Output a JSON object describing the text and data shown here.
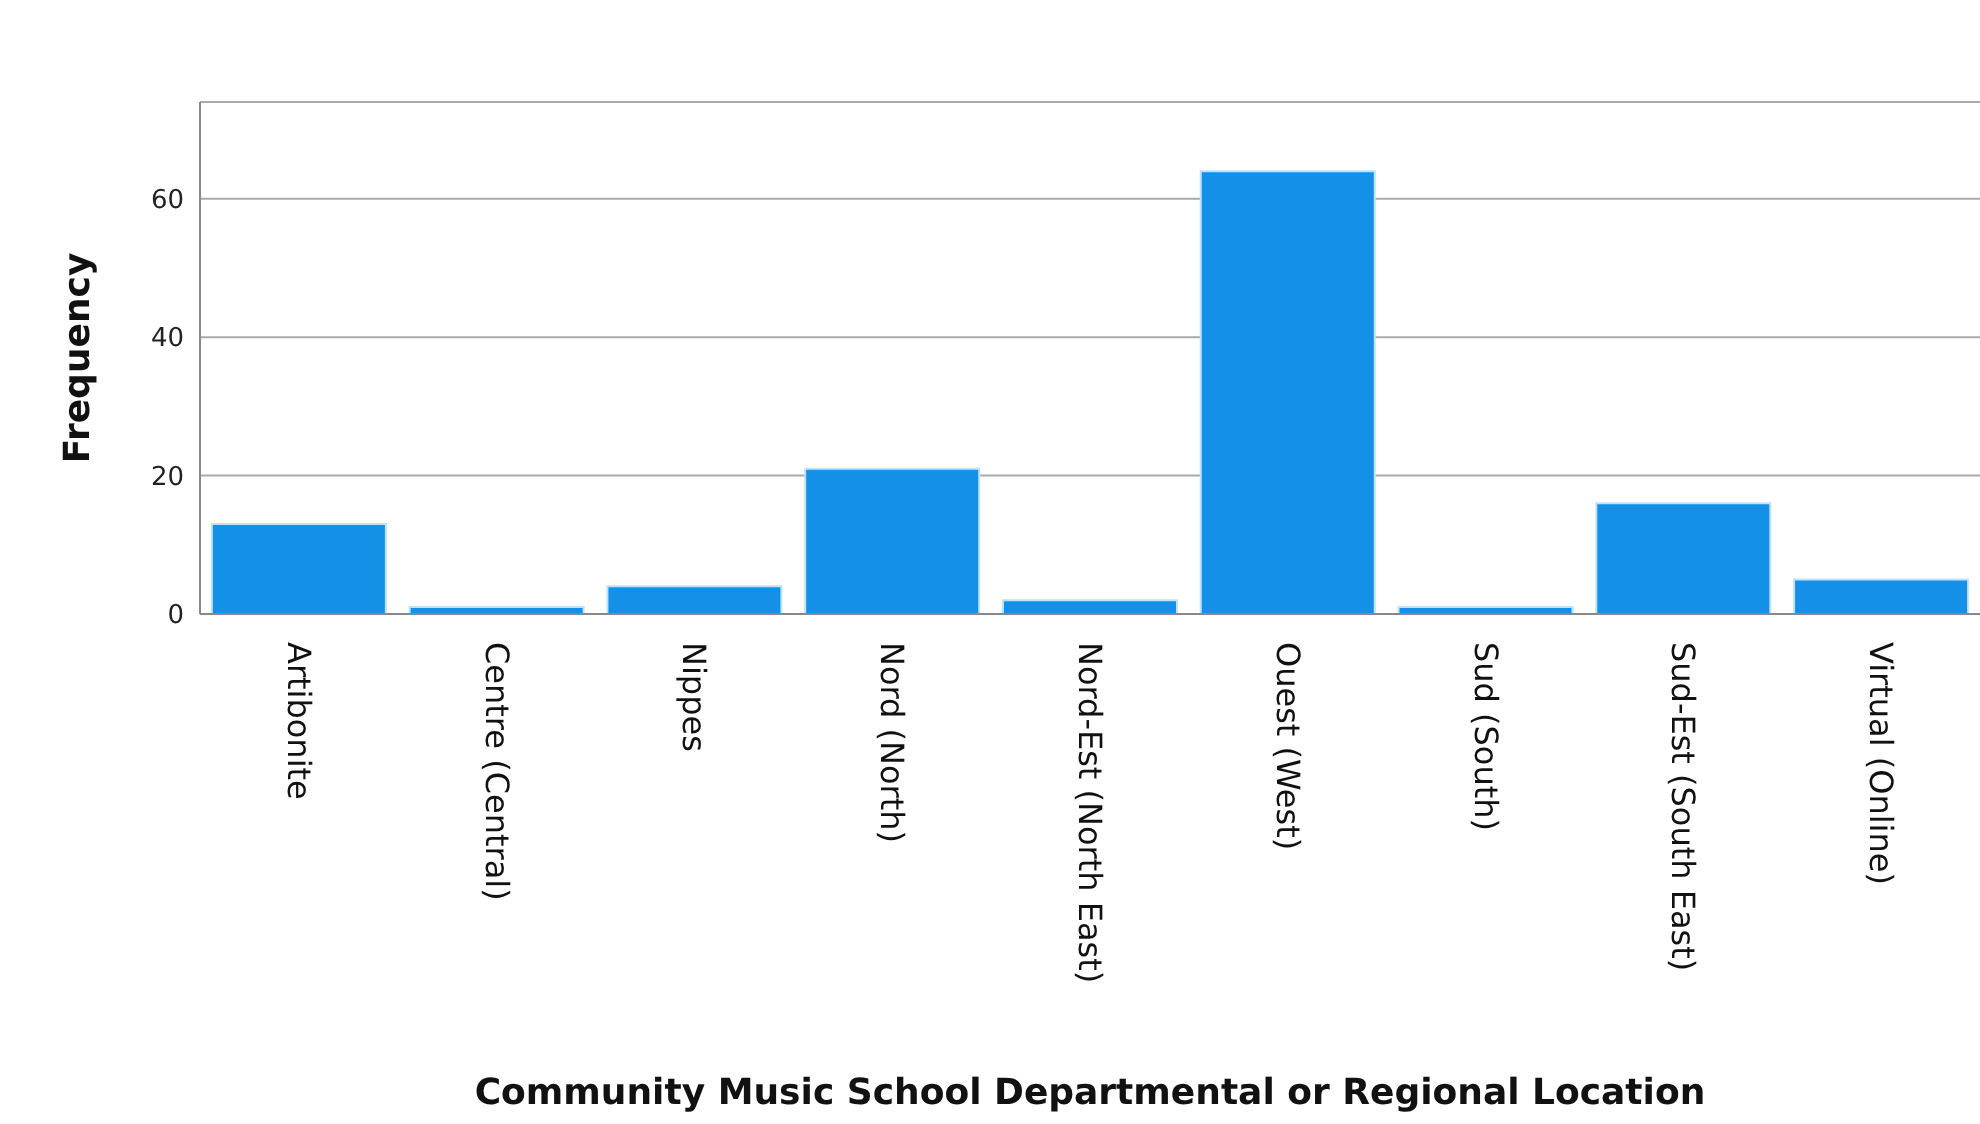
{
  "chart_data": {
    "type": "bar",
    "xlabel": "Community Music School Departmental or Regional Location",
    "ylabel": "Frequency",
    "categories": [
      "Artibonite",
      "Centre (Central)",
      "Nippes",
      "Nord (North)",
      "Nord-Est (North East)",
      "Ouest (West)",
      "Sud (South)",
      "Sud-Est (South East)",
      "Virtual (Online)"
    ],
    "values": [
      13,
      1,
      4,
      21,
      2,
      64,
      1,
      16,
      5
    ],
    "color": "#1490e6",
    "ylim": [
      0,
      74
    ],
    "yticks": [
      0,
      20,
      40,
      60
    ],
    "grid": "y"
  }
}
